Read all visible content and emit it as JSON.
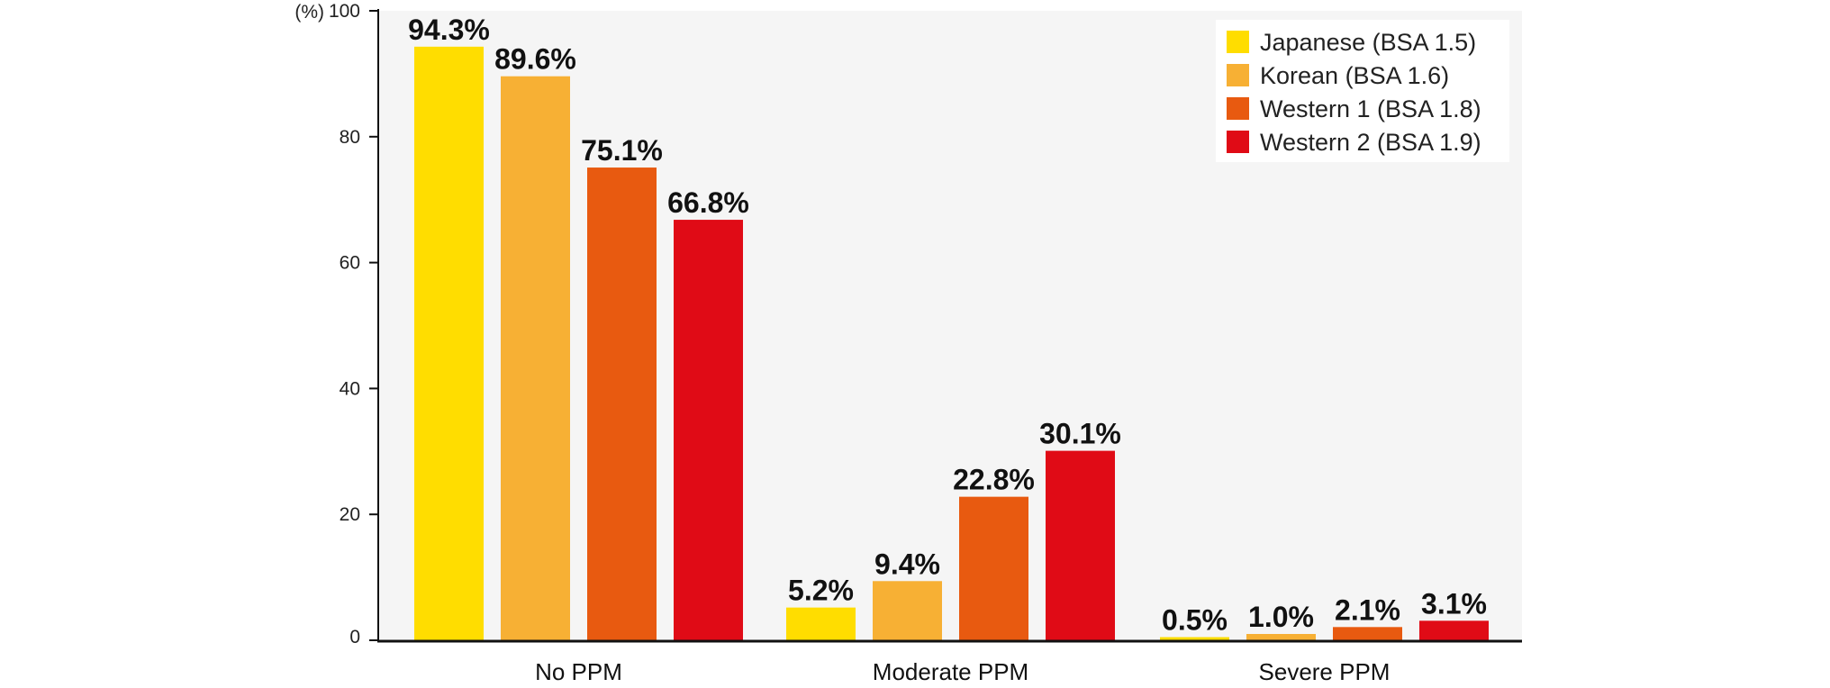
{
  "chart_data": {
    "type": "bar",
    "y_unit": "(%)",
    "ylim": [
      0,
      100
    ],
    "yticks": [
      0,
      20,
      40,
      60,
      80,
      100
    ],
    "grid": false,
    "legend_position": "top-right",
    "categories": [
      "No PPM",
      "Moderate PPM",
      "Severe PPM"
    ],
    "series": [
      {
        "name": "Japanese (BSA 1.5)",
        "color": "#FFDD00",
        "values": [
          94.3,
          5.2,
          0.5
        ],
        "labels": [
          "94.3%",
          "5.2%",
          "0.5%"
        ]
      },
      {
        "name": "Korean (BSA 1.6)",
        "color": "#F7B034",
        "values": [
          89.6,
          9.4,
          1.0
        ],
        "labels": [
          "89.6%",
          "9.4%",
          "1.0%"
        ]
      },
      {
        "name": "Western 1 (BSA 1.8)",
        "color": "#E85A10",
        "values": [
          75.1,
          22.8,
          2.1
        ],
        "labels": [
          "75.1%",
          "22.8%",
          "2.1%"
        ]
      },
      {
        "name": "Western 2 (BSA 1.9)",
        "color": "#E00B16",
        "values": [
          66.8,
          30.1,
          3.1
        ],
        "labels": [
          "66.8%",
          "30.1%",
          "3.1%"
        ]
      }
    ]
  }
}
